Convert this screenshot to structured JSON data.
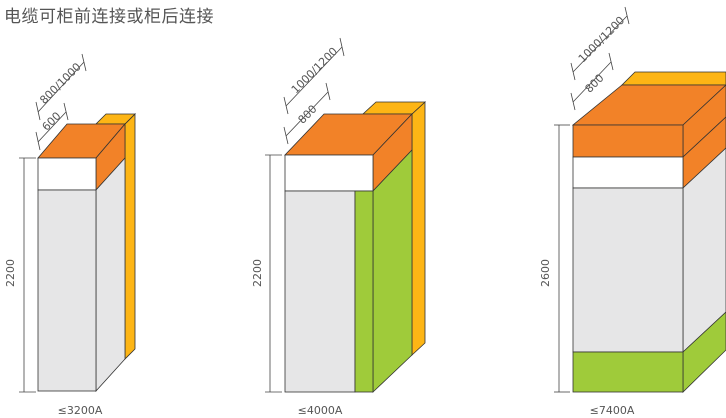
{
  "title": "电缆可柜前连接或柜后连接",
  "colors": {
    "orange": "#F28228",
    "yellow": "#FDB515",
    "green": "#9FCB3A",
    "gray": "#E6E6E7",
    "white": "#FFFFFF",
    "outline": "#333333"
  },
  "cabinets": [
    {
      "id": "cab1",
      "height_label": "2200",
      "width_label": "600",
      "depth_label": "800/1000",
      "capacity_label": "≤3200A",
      "side_color": "yellow-band"
    },
    {
      "id": "cab2",
      "height_label": "2200",
      "width_label": "800",
      "depth_label": "1000/1200",
      "capacity_label": "≤4000A",
      "side_color": "green"
    },
    {
      "id": "cab3",
      "height_label": "2600",
      "width_label": "800",
      "depth_label": "1000/1200",
      "capacity_label": "≤7400A",
      "side_color": "orange-green"
    }
  ]
}
